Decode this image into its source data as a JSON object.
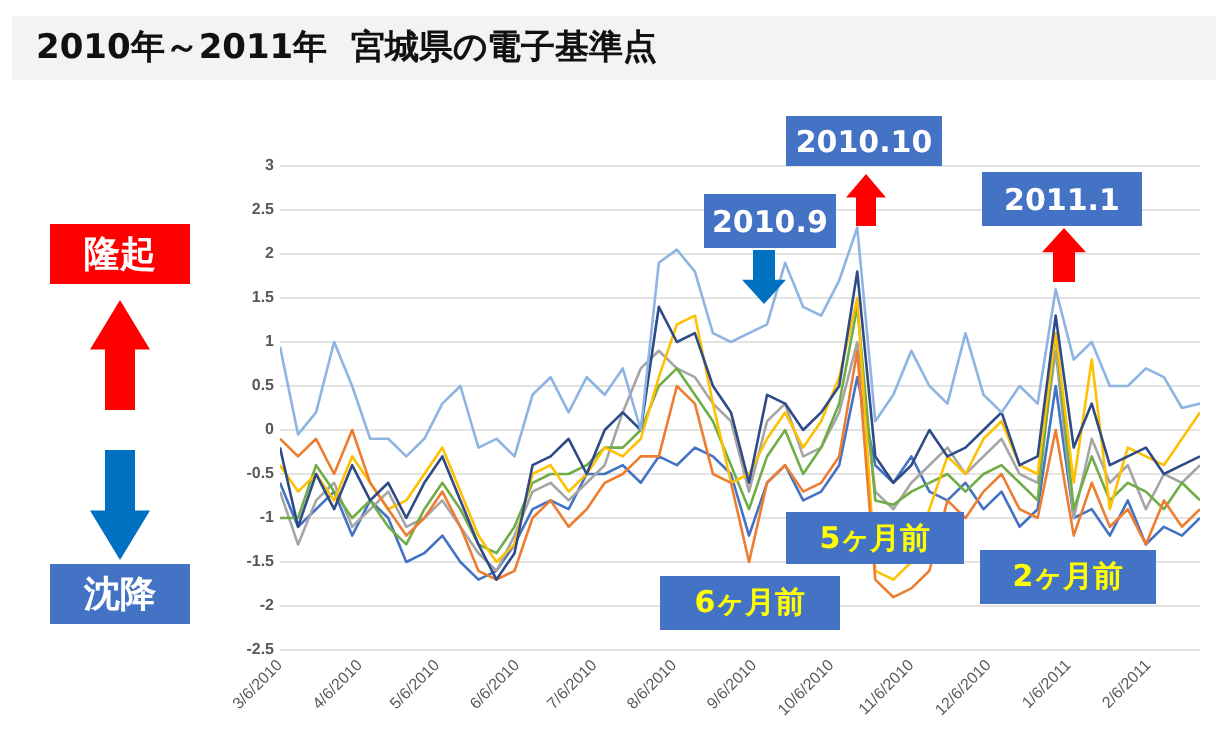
{
  "chart_data": {
    "type": "line",
    "title": "2010年～2011年  宮城県の電子基準点",
    "x": [
      "2010-03-06",
      "2010-03-13",
      "2010-03-20",
      "2010-03-27",
      "2010-04-03",
      "2010-04-10",
      "2010-04-17",
      "2010-04-24",
      "2010-05-01",
      "2010-05-08",
      "2010-05-15",
      "2010-05-22",
      "2010-05-29",
      "2010-06-05",
      "2010-06-12",
      "2010-06-19",
      "2010-06-26",
      "2010-07-03",
      "2010-07-10",
      "2010-07-17",
      "2010-07-24",
      "2010-07-31",
      "2010-08-07",
      "2010-08-14",
      "2010-08-21",
      "2010-08-28",
      "2010-09-04",
      "2010-09-11",
      "2010-09-18",
      "2010-09-25",
      "2010-10-02",
      "2010-10-09",
      "2010-10-16",
      "2010-10-23",
      "2010-10-30",
      "2010-11-06",
      "2010-11-13",
      "2010-11-20",
      "2010-11-27",
      "2010-12-04",
      "2010-12-11",
      "2010-12-18",
      "2010-12-25",
      "2011-01-01",
      "2011-01-08",
      "2011-01-15",
      "2011-01-22",
      "2011-01-29",
      "2011-02-05",
      "2011-02-12",
      "2011-02-19",
      "2011-02-26"
    ],
    "series": [
      {
        "color": "#8db4e2",
        "values": [
          0.95,
          -0.05,
          0.2,
          1.0,
          0.5,
          -0.1,
          -0.1,
          -0.3,
          -0.1,
          0.3,
          0.5,
          -0.2,
          -0.1,
          -0.3,
          0.4,
          0.6,
          0.2,
          0.6,
          0.4,
          0.7,
          0.0,
          1.9,
          2.05,
          1.8,
          1.1,
          1.0,
          1.1,
          1.2,
          1.9,
          1.4,
          1.3,
          1.7,
          2.3,
          0.1,
          0.4,
          0.9,
          0.5,
          0.3,
          1.1,
          0.4,
          0.2,
          0.5,
          0.3,
          1.6,
          0.8,
          1.0,
          0.5,
          0.5,
          0.7,
          0.6,
          0.25,
          0.3
        ]
      },
      {
        "color": "#2e4a87",
        "values": [
          -0.2,
          -1.1,
          -0.5,
          -0.9,
          -0.4,
          -0.8,
          -0.6,
          -1.0,
          -0.6,
          -0.3,
          -0.8,
          -1.3,
          -1.7,
          -1.4,
          -0.4,
          -0.3,
          -0.1,
          -0.5,
          0.0,
          0.2,
          0.0,
          1.4,
          1.0,
          1.1,
          0.5,
          0.2,
          -0.6,
          0.4,
          0.3,
          0.0,
          0.2,
          0.5,
          1.8,
          -0.3,
          -0.6,
          -0.4,
          0.0,
          -0.3,
          -0.2,
          0.0,
          0.2,
          -0.4,
          -0.3,
          1.3,
          -0.2,
          0.3,
          -0.4,
          -0.3,
          -0.2,
          -0.5,
          -0.4,
          -0.3
        ]
      },
      {
        "color": "#ed7d31",
        "values": [
          -0.1,
          -0.3,
          -0.1,
          -0.5,
          0.0,
          -0.6,
          -0.9,
          -1.2,
          -1.0,
          -0.7,
          -1.1,
          -1.6,
          -1.7,
          -1.6,
          -1.0,
          -0.8,
          -1.1,
          -0.9,
          -0.6,
          -0.5,
          -0.3,
          -0.3,
          0.5,
          0.3,
          -0.5,
          -0.6,
          -1.5,
          -0.6,
          -0.4,
          -0.7,
          -0.6,
          -0.3,
          0.9,
          -1.7,
          -1.9,
          -1.8,
          -1.6,
          -0.8,
          -1.0,
          -0.7,
          -0.5,
          -0.9,
          -1.0,
          0.0,
          -1.2,
          -0.6,
          -1.1,
          -0.9,
          -1.3,
          -0.8,
          -1.1,
          -0.9
        ]
      },
      {
        "color": "#ffc000",
        "values": [
          -0.4,
          -0.7,
          -0.5,
          -0.8,
          -0.3,
          -0.6,
          -0.9,
          -0.8,
          -0.5,
          -0.2,
          -0.7,
          -1.2,
          -1.5,
          -1.3,
          -0.5,
          -0.4,
          -0.7,
          -0.5,
          -0.2,
          -0.3,
          -0.1,
          0.6,
          1.2,
          1.3,
          0.3,
          -0.6,
          -0.5,
          -0.1,
          0.2,
          -0.2,
          0.1,
          0.6,
          1.5,
          -1.6,
          -1.7,
          -1.5,
          -0.9,
          -0.3,
          -0.5,
          -0.1,
          0.1,
          -0.4,
          -0.5,
          1.1,
          -0.6,
          0.8,
          -0.9,
          -0.2,
          -0.3,
          -0.4,
          -0.1,
          0.2
        ]
      },
      {
        "color": "#70ad47",
        "values": [
          -1.0,
          -1.0,
          -0.4,
          -0.7,
          -1.0,
          -0.8,
          -1.1,
          -1.3,
          -0.9,
          -0.6,
          -0.9,
          -1.3,
          -1.4,
          -1.1,
          -0.6,
          -0.5,
          -0.5,
          -0.4,
          -0.2,
          -0.2,
          0.0,
          0.5,
          0.7,
          0.4,
          0.1,
          -0.4,
          -0.9,
          -0.3,
          0.0,
          -0.5,
          -0.2,
          0.3,
          1.4,
          -0.8,
          -0.85,
          -0.7,
          -0.6,
          -0.5,
          -0.7,
          -0.5,
          -0.4,
          -0.6,
          -0.8,
          1.1,
          -0.9,
          -0.3,
          -0.8,
          -0.6,
          -0.7,
          -0.9,
          -0.6,
          -0.8
        ]
      },
      {
        "color": "#a5a5a5",
        "values": [
          -0.7,
          -1.3,
          -0.8,
          -0.6,
          -1.1,
          -0.9,
          -0.7,
          -1.1,
          -1.0,
          -0.8,
          -1.1,
          -1.4,
          -1.6,
          -1.2,
          -0.7,
          -0.6,
          -0.8,
          -0.6,
          -0.4,
          0.2,
          0.7,
          0.9,
          0.7,
          0.6,
          0.3,
          0.1,
          -0.7,
          0.1,
          0.3,
          -0.3,
          -0.2,
          0.2,
          1.0,
          -0.7,
          -0.9,
          -0.6,
          -0.4,
          -0.2,
          -0.5,
          -0.3,
          -0.1,
          -0.5,
          -0.6,
          0.9,
          -1.0,
          -0.1,
          -0.6,
          -0.4,
          -0.9,
          -0.5,
          -0.6,
          -0.4
        ]
      },
      {
        "color": "#4472c4",
        "values": [
          -0.6,
          -1.1,
          -0.9,
          -0.7,
          -1.2,
          -0.8,
          -1.0,
          -1.5,
          -1.4,
          -1.2,
          -1.5,
          -1.7,
          -1.6,
          -1.3,
          -0.9,
          -0.8,
          -0.9,
          -0.5,
          -0.5,
          -0.4,
          -0.6,
          -0.3,
          -0.4,
          -0.2,
          -0.3,
          -0.5,
          -1.2,
          -0.6,
          -0.4,
          -0.8,
          -0.7,
          -0.4,
          0.6,
          -0.4,
          -0.6,
          -0.3,
          -0.7,
          -0.8,
          -0.6,
          -0.9,
          -0.7,
          -1.1,
          -0.9,
          0.5,
          -1.0,
          -0.9,
          -1.2,
          -0.8,
          -1.3,
          -1.1,
          -1.2,
          -1.0
        ]
      }
    ],
    "xlim": [
      "2010-03-06",
      "2011-02-26"
    ],
    "xticks": [
      {
        "value": "2010-03-06",
        "label": "3/6/2010"
      },
      {
        "value": "2010-04-06",
        "label": "4/6/2010"
      },
      {
        "value": "2010-05-06",
        "label": "5/6/2010"
      },
      {
        "value": "2010-06-06",
        "label": "6/6/2010"
      },
      {
        "value": "2010-07-06",
        "label": "7/6/2010"
      },
      {
        "value": "2010-08-06",
        "label": "8/6/2010"
      },
      {
        "value": "2010-09-06",
        "label": "9/6/2010"
      },
      {
        "value": "2010-10-06",
        "label": "10/6/2010"
      },
      {
        "value": "2010-11-06",
        "label": "11/6/2010"
      },
      {
        "value": "2010-12-06",
        "label": "12/6/2010"
      },
      {
        "value": "2011-01-06",
        "label": "1/6/2011"
      },
      {
        "value": "2011-02-06",
        "label": "2/6/2011"
      }
    ],
    "ylim": [
      -2.5,
      3
    ],
    "yticks": [
      -2.5,
      -2,
      -1.5,
      -1,
      -0.5,
      0,
      0.5,
      1,
      1.5,
      2,
      2.5,
      3
    ],
    "grid": "y",
    "legend": false,
    "marker": "none",
    "line_style": "solid",
    "annotations": [
      "隆起",
      "沈降",
      "2010.9",
      "2010.10",
      "2011.1",
      "5ヶ月前",
      "6ヶ月前",
      "2ヶ月前"
    ]
  }
}
